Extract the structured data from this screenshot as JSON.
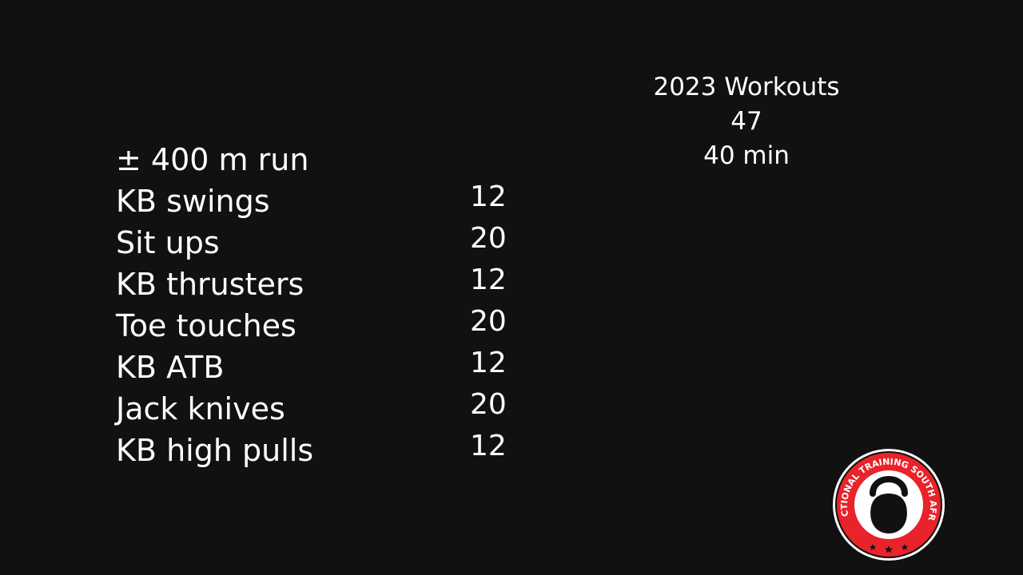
{
  "header": {
    "title": "2023 Workouts",
    "number": "47",
    "duration": "40 min"
  },
  "workout": {
    "exercises": [
      {
        "name": "± 400 m run",
        "reps": ""
      },
      {
        "name": "KB swings",
        "reps": "12"
      },
      {
        "name": "Sit ups",
        "reps": "20"
      },
      {
        "name": "KB thrusters",
        "reps": "12"
      },
      {
        "name": "Toe touches",
        "reps": "20"
      },
      {
        "name": "KB ATB",
        "reps": "12"
      },
      {
        "name": "Jack knives",
        "reps": "20"
      },
      {
        "name": "KB high pulls",
        "reps": "12"
      }
    ]
  },
  "logo": {
    "text": "FUNCTIONAL TRAINING SOUTH AFRICA",
    "icon": "kettlebell-icon",
    "ring_color": "#e8232a",
    "border_color": "#ffffff"
  },
  "colors": {
    "background": "#111111",
    "text": "#ffffff"
  }
}
